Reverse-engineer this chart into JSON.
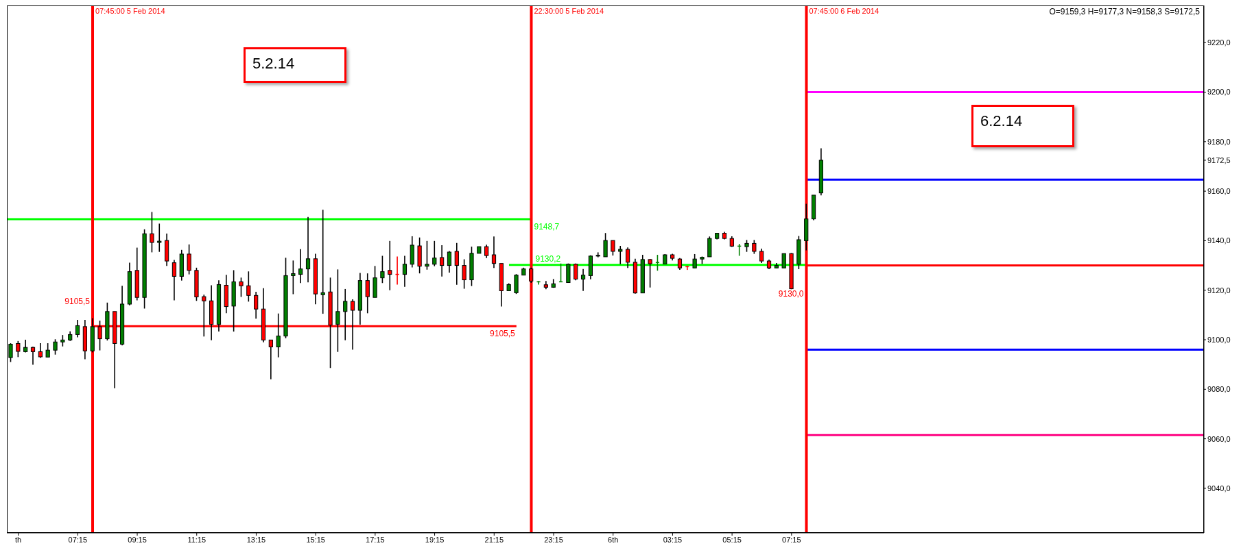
{
  "chart_data": {
    "type": "candlestick",
    "title": "O=9159,3 H=9177,3 N=9158,3 S=9172,5",
    "x": [
      "2014-02-05T05:00",
      "2014-02-05T05:15",
      "2014-02-05T05:30",
      "2014-02-05T05:45",
      "2014-02-05T06:00",
      "2014-02-05T06:15",
      "2014-02-05T06:30",
      "2014-02-05T06:45",
      "2014-02-05T07:00",
      "2014-02-05T07:15",
      "2014-02-05T07:30",
      "2014-02-05T07:45",
      "2014-02-05T08:00",
      "2014-02-05T08:15",
      "2014-02-05T08:30",
      "2014-02-05T08:45",
      "2014-02-05T09:00",
      "2014-02-05T09:15",
      "2014-02-05T09:30",
      "2014-02-05T09:45",
      "2014-02-05T10:00",
      "2014-02-05T10:15",
      "2014-02-05T10:30",
      "2014-02-05T10:45",
      "2014-02-05T11:00",
      "2014-02-05T11:15",
      "2014-02-05T11:30",
      "2014-02-05T11:45",
      "2014-02-05T12:00",
      "2014-02-05T12:15",
      "2014-02-05T12:30",
      "2014-02-05T12:45",
      "2014-02-05T13:00",
      "2014-02-05T13:15",
      "2014-02-05T13:30",
      "2014-02-05T13:45",
      "2014-02-05T14:00",
      "2014-02-05T14:15",
      "2014-02-05T14:30",
      "2014-02-05T14:45",
      "2014-02-05T15:00",
      "2014-02-05T15:15",
      "2014-02-05T15:30",
      "2014-02-05T15:45",
      "2014-02-05T16:00",
      "2014-02-05T16:15",
      "2014-02-05T16:30",
      "2014-02-05T16:45",
      "2014-02-05T17:00",
      "2014-02-05T17:15",
      "2014-02-05T17:30",
      "2014-02-05T17:45",
      "2014-02-05T18:00",
      "2014-02-05T18:15",
      "2014-02-05T18:30",
      "2014-02-05T18:45",
      "2014-02-05T19:00",
      "2014-02-05T19:15",
      "2014-02-05T19:30",
      "2014-02-05T19:45",
      "2014-02-05T20:00",
      "2014-02-05T20:15",
      "2014-02-05T20:30",
      "2014-02-05T20:45",
      "2014-02-05T21:00",
      "2014-02-05T21:15",
      "2014-02-05T21:30",
      "2014-02-05T21:45",
      "2014-02-05T22:00",
      "2014-02-05T22:15",
      "2014-02-05T22:30",
      "2014-02-05T22:45",
      "2014-02-05T23:00",
      "2014-02-05T23:15",
      "2014-02-05T23:30",
      "2014-02-05T23:45",
      "2014-02-06T00:00",
      "2014-02-06T00:15",
      "2014-02-06T00:30",
      "2014-02-06T00:45",
      "2014-02-06T01:00",
      "2014-02-06T01:15",
      "2014-02-06T01:30",
      "2014-02-06T01:45",
      "2014-02-06T02:00",
      "2014-02-06T02:15",
      "2014-02-06T02:30",
      "2014-02-06T02:45",
      "2014-02-06T03:00",
      "2014-02-06T03:15",
      "2014-02-06T03:30",
      "2014-02-06T03:45",
      "2014-02-06T04:00",
      "2014-02-06T04:15",
      "2014-02-06T04:30",
      "2014-02-06T04:45",
      "2014-02-06T05:00",
      "2014-02-06T05:15",
      "2014-02-06T05:30",
      "2014-02-06T05:45",
      "2014-02-06T06:00",
      "2014-02-06T06:15",
      "2014-02-06T06:30",
      "2014-02-06T06:45",
      "2014-02-06T07:00",
      "2014-02-06T07:15",
      "2014-02-06T07:30",
      "2014-02-06T07:45",
      "2014-02-06T08:00",
      "2014-02-06T08:15"
    ],
    "ohlc": [
      [
        9092.8,
        9098.6,
        9091.0,
        9098.2
      ],
      [
        9098.5,
        9099.5,
        9093.0,
        9095.3
      ],
      [
        9095.2,
        9100.0,
        9094.9,
        9096.9
      ],
      [
        9096.9,
        9097.2,
        9089.9,
        9095.2
      ],
      [
        9095.2,
        9098.6,
        9092.7,
        9093.1
      ],
      [
        9093.0,
        9098.6,
        9093.0,
        9095.8
      ],
      [
        9095.8,
        9100.2,
        9094.0,
        9099.1
      ],
      [
        9099.1,
        9101.9,
        9097.3,
        9099.9
      ],
      [
        9099.9,
        9103.4,
        9099.5,
        9102.1
      ],
      [
        9102.1,
        9108.0,
        9101.0,
        9105.7
      ],
      [
        9105.3,
        9108.0,
        9092.1,
        9095.5
      ],
      [
        9095.5,
        9108.7,
        9094.9,
        9105.3
      ],
      [
        9105.3,
        9107.7,
        9095.7,
        9100.4
      ],
      [
        9100.4,
        9115.0,
        9099.7,
        9111.4
      ],
      [
        9111.4,
        9111.4,
        9080.4,
        9098.5
      ],
      [
        9098.2,
        9121.8,
        9097.7,
        9114.4
      ],
      [
        9114.4,
        9131.1,
        9113.9,
        9127.5
      ],
      [
        9128.0,
        9137.2,
        9115.9,
        9117.1
      ],
      [
        9117.1,
        9144.6,
        9112.6,
        9142.8
      ],
      [
        9142.8,
        9151.6,
        9135.3,
        9139.3
      ],
      [
        9139.3,
        9146.9,
        9135.5,
        9139.8
      ],
      [
        9140.1,
        9142.9,
        9129.8,
        9131.8
      ],
      [
        9131.1,
        9132.2,
        9115.9,
        9125.6
      ],
      [
        9125.6,
        9136.3,
        9123.9,
        9134.6
      ],
      [
        9134.6,
        9138.5,
        9126.4,
        9128.0
      ],
      [
        9128.0,
        9129.1,
        9115.7,
        9117.3
      ],
      [
        9117.4,
        9118.2,
        9101.3,
        9115.7
      ],
      [
        9115.7,
        9122.0,
        9099.8,
        9106.2
      ],
      [
        9106.2,
        9124.0,
        9103.3,
        9122.3
      ],
      [
        9122.0,
        9126.2,
        9110.7,
        9113.4
      ],
      [
        9113.6,
        9128.1,
        9103.3,
        9123.4
      ],
      [
        9123.4,
        9125.1,
        9117.3,
        9121.8
      ],
      [
        9121.8,
        9127.6,
        9115.4,
        9117.9
      ],
      [
        9117.9,
        9119.4,
        9108.5,
        9112.4
      ],
      [
        9112.4,
        9120.8,
        9099.0,
        9099.9
      ],
      [
        9099.9,
        9099.9,
        9084.0,
        9097.1
      ],
      [
        9097.1,
        9110.6,
        9092.9,
        9101.5
      ],
      [
        9101.5,
        9133.1,
        9100.6,
        9125.9
      ],
      [
        9125.9,
        9132.0,
        9118.4,
        9126.7
      ],
      [
        9126.4,
        9136.6,
        9122.9,
        9128.6
      ],
      [
        9128.6,
        9149.6,
        9123.2,
        9132.7
      ],
      [
        9132.7,
        9134.7,
        9114.3,
        9118.5
      ],
      [
        9118.2,
        9152.5,
        9110.5,
        9119.0
      ],
      [
        9119.3,
        9125.1,
        9088.6,
        9105.9
      ],
      [
        9106.2,
        9128.4,
        9095.1,
        9111.4
      ],
      [
        9111.4,
        9120.5,
        9099.8,
        9115.5
      ],
      [
        9115.5,
        9116.3,
        9096.0,
        9111.9
      ],
      [
        9111.9,
        9127.0,
        9106.1,
        9123.9
      ],
      [
        9123.9,
        9126.8,
        9110.7,
        9117.4
      ],
      [
        9117.1,
        9129.8,
        9117.1,
        9125.0
      ],
      [
        9125.0,
        9133.9,
        9122.9,
        9127.5
      ],
      [
        9128.0,
        9139.9,
        9120.0,
        9126.4
      ],
      [
        9126.4,
        9133.6,
        9122.3,
        9126.4
      ],
      [
        9126.4,
        9133.9,
        9121.4,
        9130.5
      ],
      [
        9130.5,
        9141.8,
        9129.2,
        9138.2
      ],
      [
        9137.9,
        9141.3,
        9126.8,
        9129.7
      ],
      [
        9129.7,
        9139.9,
        9128.3,
        9130.5
      ],
      [
        9130.5,
        9139.9,
        9129.7,
        9133.0
      ],
      [
        9133.2,
        9138.2,
        9125.5,
        9130.0
      ],
      [
        9130.0,
        9135.8,
        9127.1,
        9135.4
      ],
      [
        9135.7,
        9139.1,
        9122.2,
        9130.0
      ],
      [
        9130.0,
        9132.5,
        9120.6,
        9124.2
      ],
      [
        9124.2,
        9137.6,
        9121.7,
        9134.9
      ],
      [
        9134.9,
        9137.6,
        9134.9,
        9137.6
      ],
      [
        9137.6,
        9138.4,
        9133.0,
        9134.0
      ],
      [
        9134.3,
        9141.7,
        9129.0,
        9130.8
      ],
      [
        9130.8,
        9130.8,
        9113.4,
        9119.8
      ],
      [
        9119.8,
        9122.8,
        9119.8,
        9122.3
      ],
      [
        9119.0,
        9126.5,
        9118.5,
        9126.1
      ],
      [
        9126.1,
        9129.1,
        9126.1,
        9128.6
      ],
      [
        9128.6,
        9129.1,
        9123.0,
        9123.7
      ],
      [
        9123.2,
        9123.7,
        9122.3,
        9123.4
      ],
      [
        9122.2,
        9123.7,
        9120.4,
        9121.2
      ],
      [
        9121.2,
        9124.5,
        9121.0,
        9122.6
      ],
      [
        9123.4,
        9130.8,
        9123.4,
        9123.4
      ],
      [
        9123.1,
        9130.8,
        9123.0,
        9130.5
      ],
      [
        9130.5,
        9130.8,
        9124.0,
        9124.5
      ],
      [
        9124.5,
        9128.6,
        9119.7,
        9126.1
      ],
      [
        9125.9,
        9134.1,
        9124.4,
        9133.8
      ],
      [
        9133.8,
        9135.3,
        9133.3,
        9134.1
      ],
      [
        9133.5,
        9143.1,
        9133.5,
        9140.1
      ],
      [
        9140.1,
        9140.1,
        9134.0,
        9135.7
      ],
      [
        9135.7,
        9137.9,
        9130.5,
        9136.5
      ],
      [
        9136.5,
        9137.3,
        9129.0,
        9131.3
      ],
      [
        9131.3,
        9132.7,
        9118.6,
        9118.9
      ],
      [
        9118.9,
        9134.3,
        9118.9,
        9132.4
      ],
      [
        9132.4,
        9132.6,
        9121.1,
        9130.7
      ],
      [
        9131.0,
        9134.3,
        9127.9,
        9131.2
      ],
      [
        9130.6,
        9134.6,
        9130.6,
        9134.3
      ],
      [
        9134.3,
        9134.7,
        9132.0,
        9132.9
      ],
      [
        9132.6,
        9133.0,
        9128.2,
        9129.0
      ],
      [
        9129.5,
        9129.9,
        9128.2,
        9129.5
      ],
      [
        9129.0,
        9134.6,
        9129.0,
        9132.6
      ],
      [
        9132.6,
        9133.6,
        9130.6,
        9133.3
      ],
      [
        9133.5,
        9141.7,
        9133.5,
        9140.9
      ],
      [
        9140.9,
        9143.0,
        9140.5,
        9143.0
      ],
      [
        9143.0,
        9143.6,
        9140.5,
        9140.9
      ],
      [
        9140.9,
        9141.8,
        9137.5,
        9137.8
      ],
      [
        9137.7,
        9138.7,
        9133.9,
        9137.8
      ],
      [
        9137.6,
        9140.3,
        9135.5,
        9138.9
      ],
      [
        9138.9,
        9140.3,
        9134.7,
        9135.7
      ],
      [
        9135.7,
        9136.8,
        9131.0,
        9131.8
      ],
      [
        9131.8,
        9132.4,
        9128.5,
        9129.0
      ],
      [
        9129.0,
        9131.0,
        9129.0,
        9130.0
      ],
      [
        9129.0,
        9134.8,
        9129.0,
        9134.8
      ],
      [
        9134.8,
        9135.0,
        9120.4,
        9120.6
      ],
      [
        9130.5,
        9141.9,
        9128.5,
        9140.4
      ],
      [
        9140.0,
        9154.9,
        9136.1,
        9148.8
      ],
      [
        9148.8,
        9158.4,
        9148.3,
        9158.4
      ],
      [
        9159.3,
        9177.3,
        9158.3,
        9172.5
      ]
    ],
    "colors": [
      "#008000",
      "#ff0000",
      "#008000",
      "#ff0000",
      "#ff0000",
      "#008000",
      "#008000",
      "#008000",
      "#008000",
      "#008000",
      "#ff0000",
      "#008000",
      "#ff0000",
      "#008000",
      "#ff0000",
      "#008000",
      "#008000",
      "#ff0000",
      "#008000",
      "#ff0000",
      "#008000",
      "#ff0000",
      "#ff0000",
      "#008000",
      "#ff0000",
      "#ff0000",
      "#ff0000",
      "#ff0000",
      "#008000",
      "#ff0000",
      "#008000",
      "#ff0000",
      "#ff0000",
      "#ff0000",
      "#ff0000",
      "#ff0000",
      "#008000",
      "#008000",
      "#008000",
      "#008000",
      "#008000",
      "#ff0000",
      "#008000",
      "#ff0000",
      "#008000",
      "#008000",
      "#ff0000",
      "#008000",
      "#ff0000",
      "#008000",
      "#008000",
      "#ff0000",
      "#ff0000",
      "#008000",
      "#008000",
      "#ff0000",
      "#008000",
      "#008000",
      "#ff0000",
      "#008000",
      "#ff0000",
      "#ff0000",
      "#008000",
      "#008000",
      "#ff0000",
      "#ff0000",
      "#ff0000",
      "#008000",
      "#008000",
      "#008000",
      "#ff0000",
      "#008000",
      "#ff0000",
      "#008000",
      "#008000",
      "#008000",
      "#ff0000",
      "#008000",
      "#008000",
      "#008000",
      "#008000",
      "#ff0000",
      "#008000",
      "#ff0000",
      "#ff0000",
      "#008000",
      "#ff0000",
      "#008000",
      "#008000",
      "#ff0000",
      "#ff0000",
      "#ff0000",
      "#008000",
      "#008000",
      "#008000",
      "#008000",
      "#ff0000",
      "#ff0000",
      "#008000",
      "#008000",
      "#ff0000",
      "#ff0000",
      "#ff0000",
      "#008000",
      "#008000",
      "#ff0000",
      "#008000",
      "#008000",
      "#008000",
      "#008000"
    ],
    "series": [
      {
        "type": "line",
        "color": "#00ff00",
        "x": [
          "2014-02-05T04:52",
          "2014-02-05T22:30"
        ],
        "values": [
          9148.7,
          9148.7
        ]
      },
      {
        "type": "line",
        "color": "#ff0000",
        "x": [
          "2014-02-05T07:45",
          "2014-02-05T22:00"
        ],
        "values": [
          9105.5,
          9105.5
        ]
      },
      {
        "type": "line",
        "color": "#00ff00",
        "x": [
          "2014-02-05T21:45",
          "2014-02-06T07:45"
        ],
        "values": [
          9130.2,
          9130.2
        ]
      },
      {
        "type": "line",
        "color": "#ff0000",
        "x": [
          "2014-02-06T07:45",
          "2014-02-06T21:07"
        ],
        "values": [
          9130.0,
          9130.0
        ]
      },
      {
        "type": "line",
        "color": "#ff00ff",
        "x": [
          "2014-02-06T07:45",
          "2014-02-06T21:07"
        ],
        "values": [
          9200.0,
          9200.0
        ]
      },
      {
        "type": "line",
        "color": "#0000ff",
        "x": [
          "2014-02-06T07:45",
          "2014-02-06T21:07"
        ],
        "values": [
          9164.7,
          9164.7
        ]
      },
      {
        "type": "line",
        "color": "#0000ff",
        "x": [
          "2014-02-06T07:45",
          "2014-02-06T21:07"
        ],
        "values": [
          9096.0,
          9096.0
        ]
      },
      {
        "type": "line",
        "color": "#ff0080",
        "x": [
          "2014-02-06T07:45",
          "2014-02-06T21:07"
        ],
        "values": [
          9061.5,
          9061.5
        ]
      }
    ],
    "ref_lines": [
      {
        "axis": "x",
        "value": "2014-02-05T07:45",
        "label": "07:45:00 5 Feb 2014",
        "color": "#ff0000"
      },
      {
        "axis": "x",
        "value": "2014-02-05T22:30",
        "label": "22:30:00 5 Feb 2014",
        "color": "#ff0000"
      },
      {
        "axis": "x",
        "value": "2014-02-06T07:45",
        "label": "07:45:00 6 Feb 2014",
        "color": "#ff0000"
      }
    ],
    "annotations": [
      "5.2.14",
      "6.2.14",
      {
        "text": "9148,7",
        "x": "2014-02-05T22:30",
        "y": 9148.7
      },
      {
        "text": "9105,5",
        "x": "2014-02-05T07:45",
        "y": 9105.5
      },
      {
        "text": "9105,5",
        "x": "2014-02-05T22:00",
        "y": 9105.5
      },
      {
        "text": "9130,2",
        "x": "2014-02-05T22:30",
        "y": 9130.2
      },
      {
        "text": "9130,0",
        "x": "2014-02-06T07:45",
        "y": 9130.0
      }
    ],
    "xlim": [
      "2014-02-05T04:52",
      "2014-02-06T21:07"
    ],
    "xticks": [
      {
        "value": "2014-02-05T05:15",
        "label": "th"
      },
      {
        "value": "2014-02-05T07:15",
        "label": "07:15"
      },
      {
        "value": "2014-02-05T09:15",
        "label": "09:15"
      },
      {
        "value": "2014-02-05T11:15",
        "label": "11:15"
      },
      {
        "value": "2014-02-05T13:15",
        "label": "13:15"
      },
      {
        "value": "2014-02-05T15:15",
        "label": "15:15"
      },
      {
        "value": "2014-02-05T17:15",
        "label": "17:15"
      },
      {
        "value": "2014-02-05T19:15",
        "label": "19:15"
      },
      {
        "value": "2014-02-05T21:15",
        "label": "21:15"
      },
      {
        "value": "2014-02-05T23:15",
        "label": "23:15"
      },
      {
        "value": "2014-02-06T01:15",
        "label": "6th"
      },
      {
        "value": "2014-02-06T03:15",
        "label": "03:15"
      },
      {
        "value": "2014-02-06T05:15",
        "label": "05:15"
      },
      {
        "value": "2014-02-06T07:15",
        "label": "07:15"
      }
    ],
    "ylim": [
      9022,
      9235
    ],
    "yticks": [
      {
        "value": 9040,
        "label": "9040,0"
      },
      {
        "value": 9060,
        "label": "9060,0"
      },
      {
        "value": 9080,
        "label": "9080,0"
      },
      {
        "value": 9100,
        "label": "9100,0"
      },
      {
        "value": 9120,
        "label": "9120,0"
      },
      {
        "value": 9140,
        "label": "9140,0"
      },
      {
        "value": 9160,
        "label": "9160,0"
      },
      {
        "value": 9172.5,
        "label": "9172,5"
      },
      {
        "value": 9180,
        "label": "9180,0"
      },
      {
        "value": 9200,
        "label": "9200,0"
      },
      {
        "value": 9220,
        "label": "9220,0"
      }
    ]
  }
}
